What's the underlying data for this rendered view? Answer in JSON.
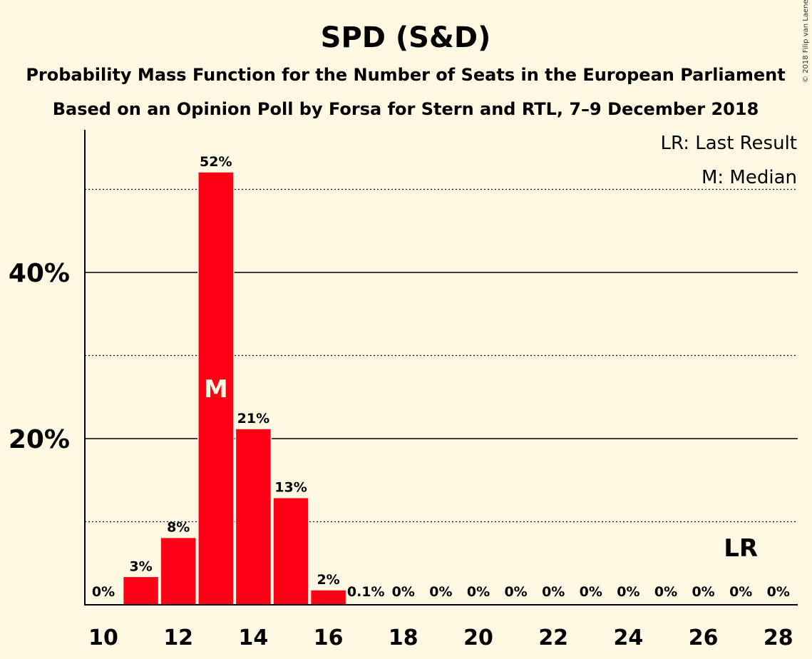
{
  "chart_data": {
    "type": "bar",
    "title": "SPD (S&D)",
    "subtitle_1": "Probability Mass Function for the Number of Seats in the European Parliament",
    "subtitle_2": "Based on an Opinion Poll by Forsa for Stern and RTL, 7–9 December 2018",
    "categories": [
      10,
      11,
      12,
      13,
      14,
      15,
      16,
      17,
      18,
      19,
      20,
      21,
      22,
      23,
      24,
      25,
      26,
      27,
      28
    ],
    "values": [
      0,
      3.4,
      8.1,
      52.1,
      21.2,
      12.9,
      1.8,
      0.1,
      0,
      0,
      0,
      0,
      0,
      0,
      0,
      0,
      0,
      0,
      0
    ],
    "value_labels": [
      "0%",
      "3%",
      "8%",
      "52%",
      "21%",
      "13%",
      "2%",
      "0.1%",
      "0%",
      "0%",
      "0%",
      "0%",
      "0%",
      "0%",
      "0%",
      "0%",
      "0%",
      "0%",
      "0%"
    ],
    "x_tick_labels": [
      "10",
      "12",
      "14",
      "16",
      "18",
      "20",
      "22",
      "24",
      "26",
      "28"
    ],
    "x_tick_values": [
      10,
      12,
      14,
      16,
      18,
      20,
      22,
      24,
      26,
      28
    ],
    "y_tick_labels": [
      "20%",
      "40%"
    ],
    "y_tick_values": [
      20,
      40
    ],
    "y_minor_gridlines": [
      10,
      30,
      50
    ],
    "ylim": [
      0,
      57
    ],
    "median_seat": 13,
    "median_marker": "M",
    "last_result_seat": 27,
    "last_result_marker": "LR",
    "legend": [
      "LR: Last Result",
      "M: Median"
    ],
    "legend_position": "top-right",
    "bar_color": "#FF0014",
    "background_color": "#FFF9E3"
  },
  "copyright": "© 2018 Filip van Laenen"
}
